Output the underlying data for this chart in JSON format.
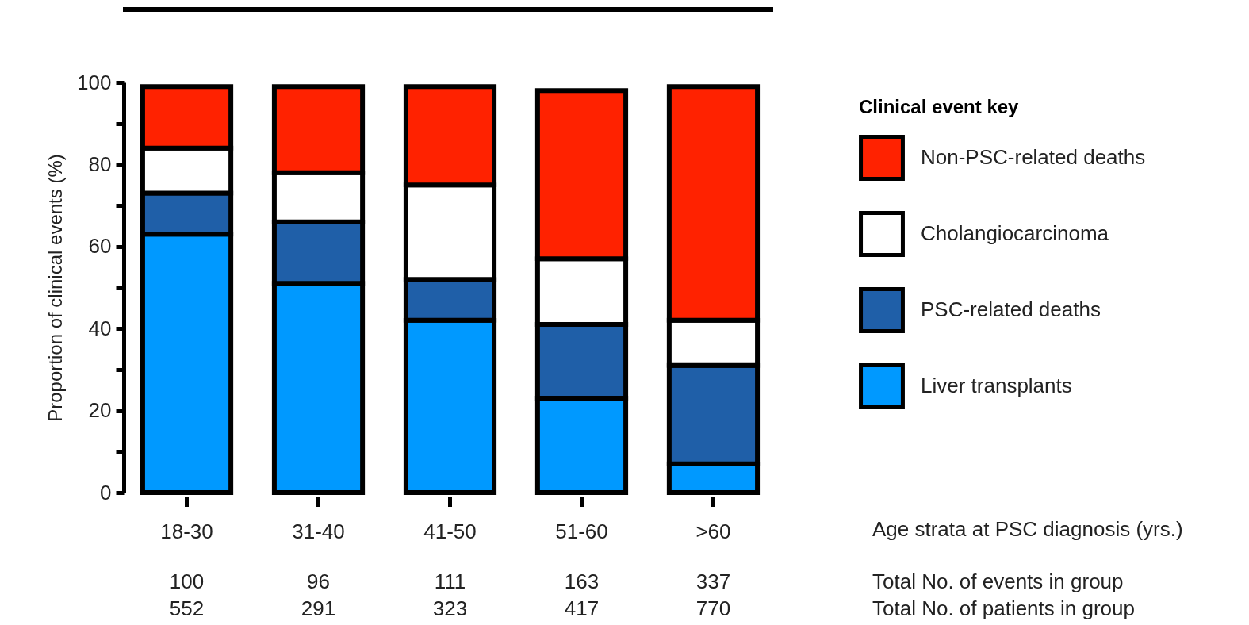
{
  "chart_data": {
    "type": "bar",
    "stacked": true,
    "ylabel": "Proportion of clinical events (%)",
    "xlabel": "Age strata at PSC diagnosis (yrs.)",
    "legend_title": "Clinical event key",
    "legend": "right",
    "categories": [
      "18-30",
      "31-40",
      "41-50",
      "51-60",
      ">60"
    ],
    "series": [
      {
        "name": "Liver transplants",
        "color": "#0099ff",
        "values": [
          63,
          51,
          42,
          23,
          7
        ]
      },
      {
        "name": "PSC-related deaths",
        "color": "#1f5fa8",
        "values": [
          10,
          15,
          10,
          18,
          24
        ]
      },
      {
        "name": "Cholangiocarcinoma",
        "color": "#ffffff",
        "values": [
          11,
          12,
          23,
          16,
          11
        ]
      },
      {
        "name": "Non-PSC-related deaths",
        "color": "#ff2200",
        "values": [
          15,
          21,
          24,
          41,
          57
        ]
      }
    ],
    "ylim": [
      0,
      100
    ],
    "yticks": [
      0,
      {
        "value": 10,
        "label": null
      },
      20,
      {
        "value": 30,
        "label": null
      },
      40,
      {
        "value": 50,
        "label": null
      },
      60,
      {
        "value": 70,
        "label": null
      },
      80,
      {
        "value": 90,
        "label": null
      },
      100
    ],
    "grid": false,
    "annotations": [
      "Total No. of events in group",
      "100",
      "96",
      "111",
      "163",
      "337",
      "Total No. of patients in group",
      "552",
      "291",
      "323",
      "417",
      "770"
    ]
  }
}
